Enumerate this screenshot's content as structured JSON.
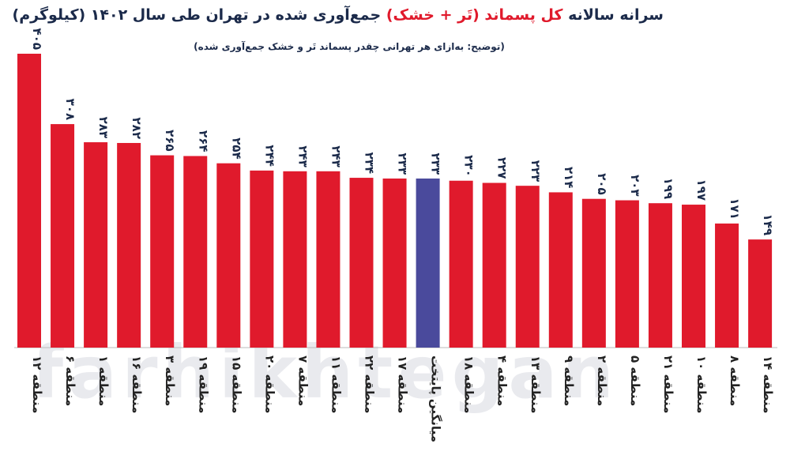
{
  "header": {
    "title_pre": "سرانه سالانه",
    "title_hl": "کل پسماند (تَر + خشک)",
    "title_post": "جمع‌آوری شده در تهران طی سال ۱۴۰۲ (کیلوگرم)",
    "subtitle": "(توضیح: به‌ازای هر تهرانی چقدر پسماند تَر و خشک جمع‌آوری شده)"
  },
  "watermark": "farhikhtegan",
  "colors": {
    "bar": "#e01a2c",
    "highlight": "#4a4a9c",
    "text": "#1b2a4a",
    "label": "#222222"
  },
  "chart_data": {
    "type": "bar",
    "title": "سرانه سالانه کل پسماند (تَر + خشک) جمع‌آوری شده در تهران طی سال ۱۴۰۲ (کیلوگرم)",
    "categories": [
      "منطقه ۱۲",
      "منطقه ۶",
      "منطقه ۱",
      "منطقه ۱۶",
      "منطقه ۳",
      "منطقه ۱۹",
      "منطقه ۱۵",
      "منطقه ۲۰",
      "منطقه ۷",
      "منطقه ۱۱",
      "منطقه ۲۲",
      "منطقه ۱۷",
      "میانگین پایتخت",
      "منطقه ۱۸",
      "منطقه ۴",
      "منطقه ۱۳",
      "منطقه ۹",
      "منطقه ۲",
      "منطقه ۵",
      "منطقه ۲۱",
      "منطقه ۱۰",
      "منطقه ۸",
      "منطقه ۱۴"
    ],
    "values": [
      405,
      308,
      283,
      282,
      265,
      264,
      254,
      244,
      243,
      243,
      234,
      233,
      233,
      230,
      227,
      223,
      214,
      205,
      203,
      199,
      197,
      171,
      149
    ],
    "value_labels": [
      "۴۰۵",
      "۳۰۸",
      "۲۸۳",
      "۲۸۲",
      "۲۶۵",
      "۲۶۴",
      "۲۵۴",
      "۲۴۴",
      "۲۴۳",
      "۲۴۳",
      "۲۳۴",
      "۲۳۳",
      "۲۳۳",
      "۲۳۰",
      "۲۲۷",
      "۲۲۳",
      "۲۱۴",
      "۲۰۵",
      "۲۰۳",
      "۱۹۹",
      "۱۹۷",
      "۱۷۱",
      "۱۴۹"
    ],
    "highlight_index": 12,
    "ylim": [
      0,
      405
    ],
    "grid": false,
    "legend": "none"
  }
}
